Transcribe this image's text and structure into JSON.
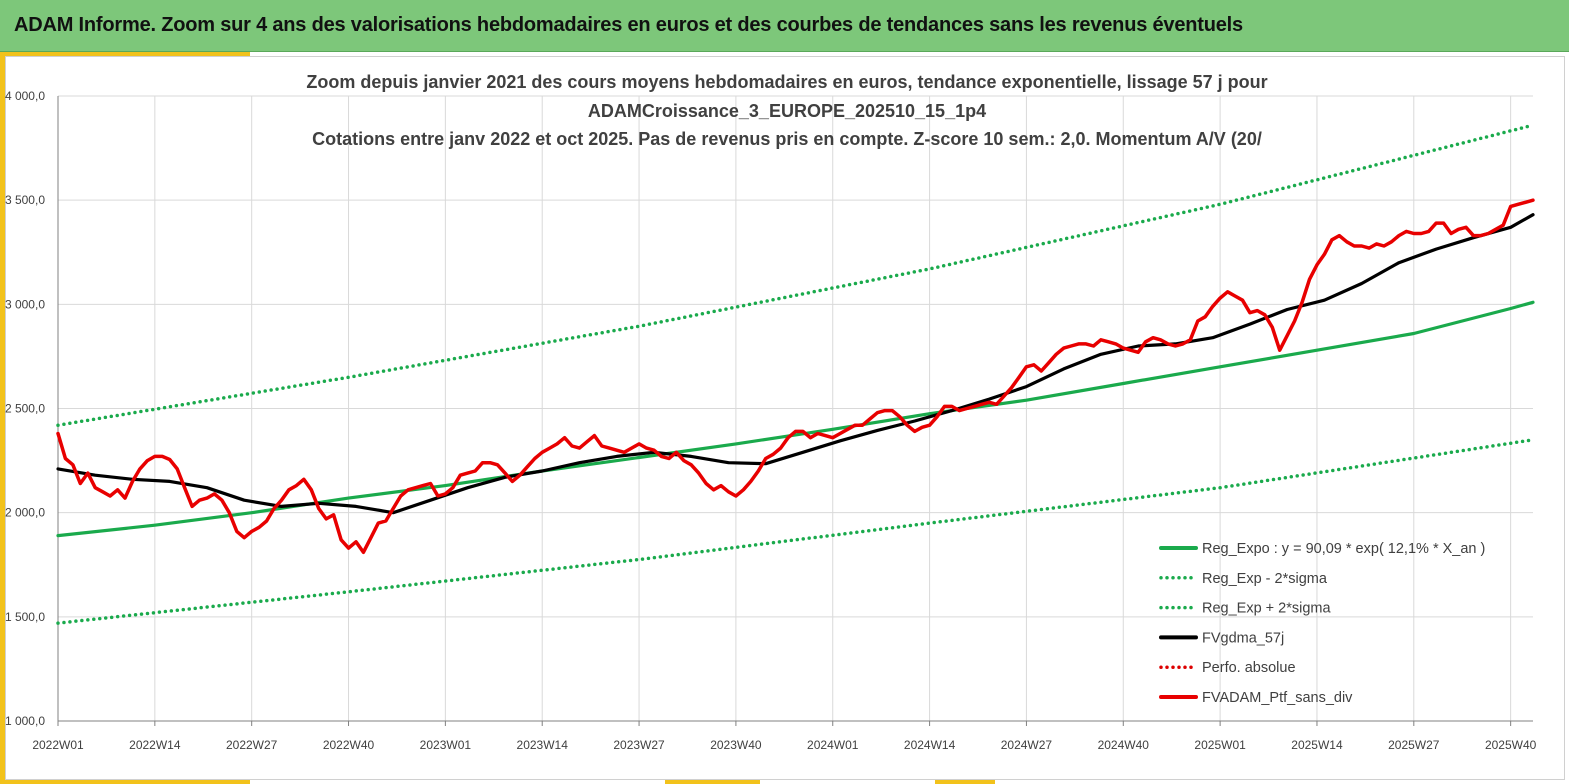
{
  "header": {
    "title": "ADAM Informe. Zoom sur 4 ans des valorisations hebdomadaires en euros et des courbes de tendances sans les revenus éventuels"
  },
  "chart_data": {
    "type": "line",
    "title_lines": [
      "Zoom depuis janvier 2021 des cours moyens hebdomadaires  en euros, tendance exponentielle, lissage 57 j pour",
      "ADAMCroissance_3_EUROPE_202510_15_1p4",
      "Cotations  entre janv 2022 et oct 2025. Pas de revenus pris en compte. Z-score 10 sem.: 2,0. Momentum A/V (20/"
    ],
    "x_tick_labels": [
      "2022W01",
      "2022W14",
      "2022W27",
      "2022W40",
      "2023W01",
      "2023W14",
      "2023W27",
      "2023W40",
      "2024W01",
      "2024W14",
      "2024W27",
      "2024W40",
      "2025W01",
      "2025W14",
      "2025W27",
      "2025W40"
    ],
    "y_tick_labels": [
      "1 000,0",
      "1 500,0",
      "2 000,0",
      "2 500,0",
      "3 000,0",
      "3 500,0",
      "4 000,0"
    ],
    "y_tick_values": [
      1000,
      1500,
      2000,
      2500,
      3000,
      3500,
      4000
    ],
    "ylim": [
      1000,
      4000
    ],
    "week_count": 199,
    "grid": true,
    "legend_position": "bottom-right",
    "series": [
      {
        "name": "Reg_Expo : y = 90,09 * exp( 12,1% *  X_an )",
        "color": "#1aaa4c",
        "style": "solid",
        "points": [
          [
            0,
            1890
          ],
          [
            13,
            1940
          ],
          [
            26,
            2000
          ],
          [
            39,
            2070
          ],
          [
            52,
            2130
          ],
          [
            65,
            2200
          ],
          [
            78,
            2265
          ],
          [
            91,
            2330
          ],
          [
            104,
            2400
          ],
          [
            117,
            2475
          ],
          [
            130,
            2540
          ],
          [
            143,
            2620
          ],
          [
            156,
            2700
          ],
          [
            169,
            2780
          ],
          [
            182,
            2860
          ],
          [
            195,
            2980
          ],
          [
            198,
            3010
          ]
        ]
      },
      {
        "name": "Reg_Exp - 2*sigma",
        "color": "#1aaa4c",
        "style": "dotted",
        "points": [
          [
            0,
            1470
          ],
          [
            39,
            1620
          ],
          [
            78,
            1775
          ],
          [
            117,
            1950
          ],
          [
            156,
            2120
          ],
          [
            198,
            2350
          ]
        ]
      },
      {
        "name": "Reg_Exp + 2*sigma",
        "color": "#1aaa4c",
        "style": "dotted",
        "points": [
          [
            0,
            2420
          ],
          [
            39,
            2650
          ],
          [
            78,
            2895
          ],
          [
            117,
            3170
          ],
          [
            156,
            3480
          ],
          [
            198,
            3860
          ]
        ]
      },
      {
        "name": "FVgdma_57j",
        "color": "#000000",
        "style": "solid",
        "points": [
          [
            0,
            2210
          ],
          [
            5,
            2180
          ],
          [
            10,
            2160
          ],
          [
            15,
            2150
          ],
          [
            20,
            2120
          ],
          [
            25,
            2060
          ],
          [
            30,
            2030
          ],
          [
            35,
            2045
          ],
          [
            40,
            2030
          ],
          [
            45,
            2000
          ],
          [
            50,
            2060
          ],
          [
            55,
            2120
          ],
          [
            60,
            2170
          ],
          [
            65,
            2200
          ],
          [
            70,
            2240
          ],
          [
            75,
            2270
          ],
          [
            80,
            2290
          ],
          [
            85,
            2270
          ],
          [
            90,
            2240
          ],
          [
            95,
            2235
          ],
          [
            100,
            2290
          ],
          [
            105,
            2345
          ],
          [
            110,
            2395
          ],
          [
            115,
            2440
          ],
          [
            120,
            2490
          ],
          [
            125,
            2545
          ],
          [
            130,
            2605
          ],
          [
            135,
            2690
          ],
          [
            140,
            2760
          ],
          [
            145,
            2800
          ],
          [
            150,
            2810
          ],
          [
            155,
            2840
          ],
          [
            160,
            2905
          ],
          [
            165,
            2975
          ],
          [
            170,
            3020
          ],
          [
            175,
            3100
          ],
          [
            180,
            3200
          ],
          [
            185,
            3265
          ],
          [
            190,
            3320
          ],
          [
            195,
            3370
          ],
          [
            198,
            3430
          ]
        ]
      },
      {
        "name": "Perfo. absolue",
        "color": "#dd0000",
        "style": "dotted",
        "points": []
      },
      {
        "name": "FVADAM_Ptf_sans_div",
        "color": "#e80000",
        "style": "solid",
        "points": [
          [
            0,
            2380
          ],
          [
            1,
            2260
          ],
          [
            2,
            2230
          ],
          [
            3,
            2140
          ],
          [
            4,
            2190
          ],
          [
            5,
            2120
          ],
          [
            6,
            2100
          ],
          [
            7,
            2080
          ],
          [
            8,
            2110
          ],
          [
            9,
            2070
          ],
          [
            10,
            2150
          ],
          [
            11,
            2210
          ],
          [
            12,
            2250
          ],
          [
            13,
            2270
          ],
          [
            14,
            2270
          ],
          [
            15,
            2255
          ],
          [
            16,
            2210
          ],
          [
            17,
            2120
          ],
          [
            18,
            2030
          ],
          [
            19,
            2060
          ],
          [
            20,
            2070
          ],
          [
            21,
            2090
          ],
          [
            22,
            2060
          ],
          [
            23,
            2000
          ],
          [
            24,
            1910
          ],
          [
            25,
            1880
          ],
          [
            26,
            1910
          ],
          [
            27,
            1930
          ],
          [
            28,
            1960
          ],
          [
            29,
            2020
          ],
          [
            30,
            2060
          ],
          [
            31,
            2110
          ],
          [
            32,
            2130
          ],
          [
            33,
            2160
          ],
          [
            34,
            2110
          ],
          [
            35,
            2020
          ],
          [
            36,
            1970
          ],
          [
            37,
            1990
          ],
          [
            38,
            1870
          ],
          [
            39,
            1830
          ],
          [
            40,
            1860
          ],
          [
            41,
            1810
          ],
          [
            42,
            1880
          ],
          [
            43,
            1950
          ],
          [
            44,
            1960
          ],
          [
            45,
            2020
          ],
          [
            46,
            2080
          ],
          [
            47,
            2110
          ],
          [
            48,
            2120
          ],
          [
            49,
            2130
          ],
          [
            50,
            2140
          ],
          [
            51,
            2080
          ],
          [
            52,
            2090
          ],
          [
            53,
            2120
          ],
          [
            54,
            2180
          ],
          [
            55,
            2190
          ],
          [
            56,
            2200
          ],
          [
            57,
            2240
          ],
          [
            58,
            2240
          ],
          [
            59,
            2230
          ],
          [
            60,
            2190
          ],
          [
            61,
            2150
          ],
          [
            62,
            2180
          ],
          [
            63,
            2220
          ],
          [
            64,
            2260
          ],
          [
            65,
            2290
          ],
          [
            66,
            2310
          ],
          [
            67,
            2330
          ],
          [
            68,
            2360
          ],
          [
            69,
            2320
          ],
          [
            70,
            2310
          ],
          [
            71,
            2340
          ],
          [
            72,
            2370
          ],
          [
            73,
            2320
          ],
          [
            74,
            2310
          ],
          [
            75,
            2300
          ],
          [
            76,
            2290
          ],
          [
            77,
            2310
          ],
          [
            78,
            2330
          ],
          [
            79,
            2310
          ],
          [
            80,
            2300
          ],
          [
            81,
            2270
          ],
          [
            82,
            2260
          ],
          [
            83,
            2290
          ],
          [
            84,
            2250
          ],
          [
            85,
            2230
          ],
          [
            86,
            2190
          ],
          [
            87,
            2140
          ],
          [
            88,
            2110
          ],
          [
            89,
            2130
          ],
          [
            90,
            2100
          ],
          [
            91,
            2080
          ],
          [
            92,
            2110
          ],
          [
            93,
            2150
          ],
          [
            94,
            2200
          ],
          [
            95,
            2260
          ],
          [
            96,
            2280
          ],
          [
            97,
            2310
          ],
          [
            98,
            2360
          ],
          [
            99,
            2390
          ],
          [
            100,
            2390
          ],
          [
            101,
            2360
          ],
          [
            102,
            2380
          ],
          [
            103,
            2370
          ],
          [
            104,
            2360
          ],
          [
            105,
            2380
          ],
          [
            106,
            2400
          ],
          [
            107,
            2420
          ],
          [
            108,
            2420
          ],
          [
            109,
            2450
          ],
          [
            110,
            2480
          ],
          [
            111,
            2490
          ],
          [
            112,
            2490
          ],
          [
            113,
            2460
          ],
          [
            114,
            2420
          ],
          [
            115,
            2390
          ],
          [
            116,
            2410
          ],
          [
            117,
            2420
          ],
          [
            118,
            2460
          ],
          [
            119,
            2510
          ],
          [
            120,
            2510
          ],
          [
            121,
            2490
          ],
          [
            122,
            2500
          ],
          [
            123,
            2510
          ],
          [
            124,
            2520
          ],
          [
            125,
            2530
          ],
          [
            126,
            2520
          ],
          [
            127,
            2560
          ],
          [
            128,
            2600
          ],
          [
            129,
            2650
          ],
          [
            130,
            2700
          ],
          [
            131,
            2710
          ],
          [
            132,
            2680
          ],
          [
            133,
            2720
          ],
          [
            134,
            2760
          ],
          [
            135,
            2790
          ],
          [
            136,
            2800
          ],
          [
            137,
            2810
          ],
          [
            138,
            2810
          ],
          [
            139,
            2800
          ],
          [
            140,
            2830
          ],
          [
            141,
            2820
          ],
          [
            142,
            2810
          ],
          [
            143,
            2790
          ],
          [
            144,
            2780
          ],
          [
            145,
            2770
          ],
          [
            146,
            2820
          ],
          [
            147,
            2840
          ],
          [
            148,
            2830
          ],
          [
            149,
            2810
          ],
          [
            150,
            2800
          ],
          [
            151,
            2810
          ],
          [
            152,
            2830
          ],
          [
            153,
            2920
          ],
          [
            154,
            2940
          ],
          [
            155,
            2990
          ],
          [
            156,
            3030
          ],
          [
            157,
            3060
          ],
          [
            158,
            3040
          ],
          [
            159,
            3020
          ],
          [
            160,
            2960
          ],
          [
            161,
            2970
          ],
          [
            162,
            2950
          ],
          [
            163,
            2890
          ],
          [
            164,
            2780
          ],
          [
            165,
            2850
          ],
          [
            166,
            2920
          ],
          [
            167,
            3010
          ],
          [
            168,
            3120
          ],
          [
            169,
            3190
          ],
          [
            170,
            3240
          ],
          [
            171,
            3310
          ],
          [
            172,
            3330
          ],
          [
            173,
            3300
          ],
          [
            174,
            3280
          ],
          [
            175,
            3280
          ],
          [
            176,
            3270
          ],
          [
            177,
            3290
          ],
          [
            178,
            3280
          ],
          [
            179,
            3300
          ],
          [
            180,
            3330
          ],
          [
            181,
            3350
          ],
          [
            182,
            3340
          ],
          [
            183,
            3340
          ],
          [
            184,
            3350
          ],
          [
            185,
            3390
          ],
          [
            186,
            3390
          ],
          [
            187,
            3340
          ],
          [
            188,
            3360
          ],
          [
            189,
            3370
          ],
          [
            190,
            3330
          ],
          [
            191,
            3330
          ],
          [
            192,
            3340
          ],
          [
            193,
            3360
          ],
          [
            194,
            3380
          ],
          [
            195,
            3470
          ],
          [
            196,
            3480
          ],
          [
            197,
            3490
          ],
          [
            198,
            3500
          ]
        ]
      }
    ]
  }
}
